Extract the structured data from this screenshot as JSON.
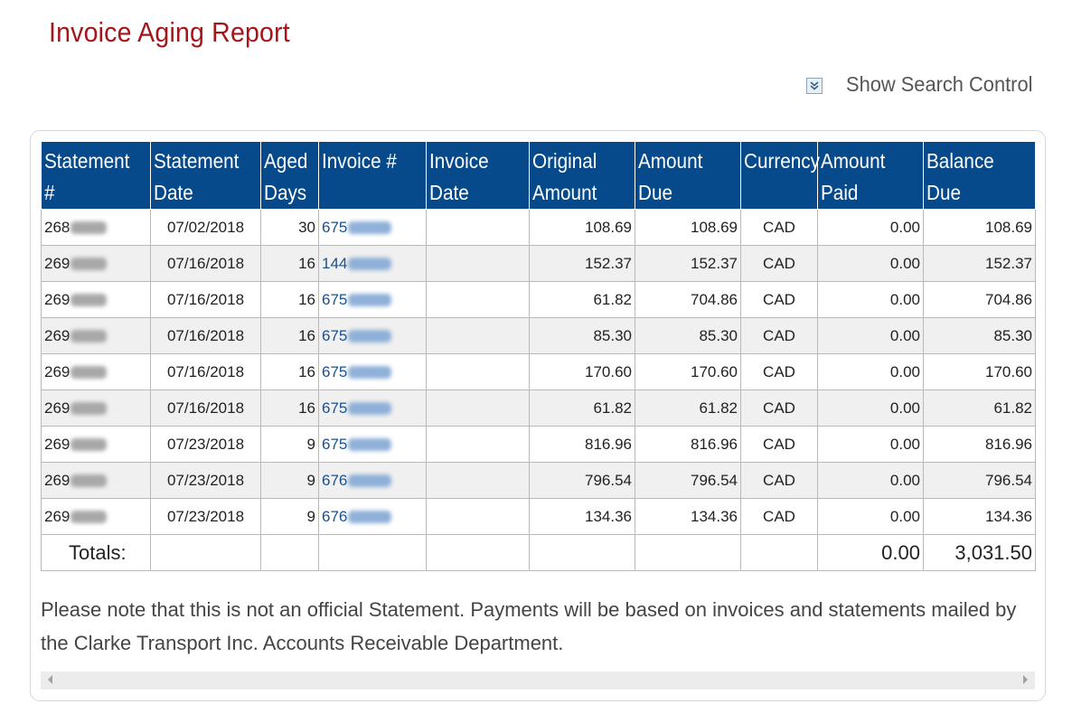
{
  "page": {
    "title": "Invoice Aging Report",
    "search_toggle_label": "Show Search Control",
    "note": "Please note that this is not an official Statement. Payments will be based on invoices and statements mailed by the Clarke Transport Inc. Accounts Receivable Department."
  },
  "table": {
    "columns": [
      "Statement #",
      "Statement Date",
      "Aged Days",
      "Invoice #",
      "Invoice Date",
      "Original Amount",
      "Amount Due",
      "Currency",
      "Amount Paid",
      "Balance Due"
    ],
    "rows": [
      {
        "statement": "268",
        "statement_date": "07/02/2018",
        "aged_days": "30",
        "invoice": "675",
        "invoice_date": "",
        "original_amount": "108.69",
        "amount_due": "108.69",
        "currency": "CAD",
        "amount_paid": "0.00",
        "balance_due": "108.69"
      },
      {
        "statement": "269",
        "statement_date": "07/16/2018",
        "aged_days": "16",
        "invoice": "144",
        "invoice_date": "",
        "original_amount": "152.37",
        "amount_due": "152.37",
        "currency": "CAD",
        "amount_paid": "0.00",
        "balance_due": "152.37"
      },
      {
        "statement": "269",
        "statement_date": "07/16/2018",
        "aged_days": "16",
        "invoice": "675",
        "invoice_date": "",
        "original_amount": "61.82",
        "amount_due": "704.86",
        "currency": "CAD",
        "amount_paid": "0.00",
        "balance_due": "704.86"
      },
      {
        "statement": "269",
        "statement_date": "07/16/2018",
        "aged_days": "16",
        "invoice": "675",
        "invoice_date": "",
        "original_amount": "85.30",
        "amount_due": "85.30",
        "currency": "CAD",
        "amount_paid": "0.00",
        "balance_due": "85.30"
      },
      {
        "statement": "269",
        "statement_date": "07/16/2018",
        "aged_days": "16",
        "invoice": "675",
        "invoice_date": "",
        "original_amount": "170.60",
        "amount_due": "170.60",
        "currency": "CAD",
        "amount_paid": "0.00",
        "balance_due": "170.60"
      },
      {
        "statement": "269",
        "statement_date": "07/16/2018",
        "aged_days": "16",
        "invoice": "675",
        "invoice_date": "",
        "original_amount": "61.82",
        "amount_due": "61.82",
        "currency": "CAD",
        "amount_paid": "0.00",
        "balance_due": "61.82"
      },
      {
        "statement": "269",
        "statement_date": "07/23/2018",
        "aged_days": "9",
        "invoice": "675",
        "invoice_date": "",
        "original_amount": "816.96",
        "amount_due": "816.96",
        "currency": "CAD",
        "amount_paid": "0.00",
        "balance_due": "816.96"
      },
      {
        "statement": "269",
        "statement_date": "07/23/2018",
        "aged_days": "9",
        "invoice": "676",
        "invoice_date": "",
        "original_amount": "796.54",
        "amount_due": "796.54",
        "currency": "CAD",
        "amount_paid": "0.00",
        "balance_due": "796.54"
      },
      {
        "statement": "269",
        "statement_date": "07/23/2018",
        "aged_days": "9",
        "invoice": "676",
        "invoice_date": "",
        "original_amount": "134.36",
        "amount_due": "134.36",
        "currency": "CAD",
        "amount_paid": "0.00",
        "balance_due": "134.36"
      }
    ],
    "totals": {
      "label": "Totals:",
      "amount_paid": "0.00",
      "balance_due": "3,031.50"
    }
  },
  "icons": {
    "search_toggle": "expand-down-icon",
    "scroll_left": "scroll-left-arrow-icon",
    "scroll_right": "scroll-right-arrow-icon"
  },
  "colors": {
    "title": "#a5161b",
    "header_bg": "#064a8b",
    "link": "#1a4f8c",
    "alt_row": "#f0f0f0"
  }
}
